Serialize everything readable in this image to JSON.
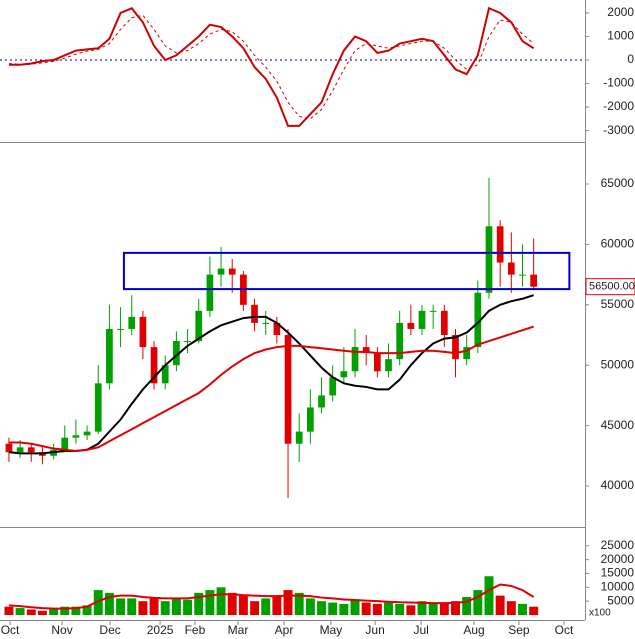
{
  "chart_data": [
    {
      "type": "line",
      "x": [
        0,
        5,
        10,
        15,
        20,
        25,
        30,
        35,
        40,
        45,
        50,
        55,
        60,
        65,
        70,
        75,
        80,
        85,
        90,
        95,
        100,
        105,
        110,
        115,
        120,
        125,
        130,
        135,
        140,
        145,
        150,
        155,
        160,
        165,
        170,
        175,
        180,
        185,
        190,
        195,
        200,
        205,
        210,
        215,
        220,
        225,
        230,
        235
      ],
      "xlim": [
        -4,
        258
      ],
      "ylim": [
        -3400,
        2550
      ],
      "yticks": [
        -3000,
        -2000,
        -1000,
        0,
        1000,
        2000
      ],
      "zero_line": {
        "value": 0,
        "color": "#00008b"
      },
      "series": [
        {
          "color": "#d00000",
          "dash": false,
          "values": [
            -200,
            -200,
            -150,
            -50,
            0,
            200,
            400,
            450,
            500,
            900,
            2000,
            2200,
            1600,
            600,
            0,
            200,
            600,
            1000,
            1500,
            1400,
            1000,
            500,
            -300,
            -800,
            -1600,
            -2800,
            -2800,
            -2300,
            -1800,
            -600,
            400,
            1000,
            800,
            300,
            400,
            700,
            800,
            900,
            800,
            200,
            -400,
            -600,
            200,
            2200,
            2000,
            1600,
            800,
            500
          ]
        },
        {
          "color": "#d00000",
          "dash": true,
          "values": [
            -150,
            -180,
            -180,
            -120,
            -60,
            80,
            250,
            380,
            450,
            700,
            1300,
            1800,
            1900,
            1300,
            600,
            300,
            400,
            700,
            1100,
            1300,
            1200,
            800,
            200,
            -300,
            -900,
            -1800,
            -2400,
            -2500,
            -2100,
            -1300,
            -400,
            400,
            700,
            600,
            500,
            600,
            700,
            800,
            800,
            500,
            0,
            -400,
            -200,
            1000,
            1700,
            1600,
            1100,
            700
          ]
        }
      ]
    },
    {
      "type": "candlestick",
      "x": [
        0,
        5,
        10,
        15,
        20,
        25,
        30,
        35,
        40,
        45,
        50,
        55,
        60,
        65,
        70,
        75,
        80,
        85,
        90,
        95,
        100,
        105,
        110,
        115,
        120,
        125,
        130,
        135,
        140,
        145,
        150,
        155,
        160,
        165,
        170,
        175,
        180,
        185,
        190,
        195,
        200,
        205,
        210,
        215,
        220,
        225,
        230,
        235
      ],
      "xlim": [
        -4,
        258
      ],
      "ylim": [
        36770,
        68230
      ],
      "yticks": [
        40000,
        45000,
        50000,
        55000,
        60000,
        65000
      ],
      "up_color": "#00a000",
      "down_color": "#e00000",
      "open": [
        43500,
        42800,
        43200,
        42800,
        42500,
        43000,
        44000,
        44200,
        44500,
        48500,
        53000,
        53000,
        54000,
        51500,
        48500,
        50000,
        52000,
        52000,
        54500,
        57500,
        58000,
        57500,
        55000,
        53500,
        53500,
        52500,
        43500,
        44500,
        46500,
        47500,
        49000,
        49500,
        51500,
        51000,
        49500,
        50500,
        53500,
        53000,
        54500,
        54500,
        52500,
        50500,
        51500,
        56000,
        61500,
        58500,
        57500,
        57500
      ],
      "high": [
        44000,
        43800,
        43500,
        43300,
        43500,
        45000,
        45500,
        45000,
        50000,
        55000,
        54800,
        55800,
        54500,
        52000,
        50800,
        52800,
        53000,
        55500,
        59000,
        59800,
        58800,
        57800,
        55500,
        54500,
        54000,
        53000,
        46000,
        48000,
        49000,
        50000,
        51500,
        53000,
        52500,
        51500,
        51800,
        54500,
        55000,
        55000,
        55000,
        55000,
        53000,
        52500,
        57000,
        65500,
        62000,
        61000,
        60000,
        60500
      ],
      "low": [
        42000,
        42300,
        42000,
        41800,
        42200,
        42800,
        43500,
        43800,
        44300,
        48000,
        51500,
        52500,
        50500,
        48000,
        48000,
        49500,
        51000,
        51800,
        54000,
        56500,
        56000,
        54500,
        52800,
        52500,
        51800,
        39000,
        42000,
        43500,
        46000,
        47000,
        48500,
        49000,
        50000,
        49000,
        49000,
        50000,
        52500,
        52500,
        53000,
        51500,
        49000,
        50000,
        51000,
        55500,
        56500,
        56000,
        56500,
        56200
      ],
      "close": [
        42800,
        43200,
        42800,
        42500,
        43000,
        44000,
        44200,
        44500,
        48500,
        53000,
        53000,
        54000,
        51500,
        48500,
        50000,
        52000,
        52000,
        54500,
        57500,
        58000,
        57500,
        55000,
        53500,
        53500,
        52500,
        43500,
        44500,
        46500,
        47500,
        49000,
        49500,
        51500,
        51000,
        49500,
        50500,
        53500,
        53000,
        54500,
        54500,
        52500,
        50500,
        51500,
        56000,
        61500,
        58500,
        57500,
        57500,
        56500
      ],
      "series": [
        {
          "color": "#000000",
          "values": [
            42800,
            42700,
            42700,
            42700,
            42800,
            42900,
            42900,
            43000,
            43500,
            44500,
            45500,
            46800,
            48000,
            49000,
            50000,
            50800,
            51600,
            52200,
            52800,
            53300,
            53600,
            53900,
            54000,
            54000,
            53500,
            52700,
            51800,
            50800,
            49800,
            49000,
            48500,
            48300,
            48200,
            48000,
            48000,
            48800,
            50000,
            51000,
            51800,
            52200,
            52300,
            52700,
            53500,
            54500,
            55000,
            55300,
            55500,
            55800
          ]
        },
        {
          "color": "#e00000",
          "values": [
            43600,
            43600,
            43500,
            43300,
            43100,
            43000,
            42900,
            43000,
            43200,
            43700,
            44200,
            44700,
            45200,
            45700,
            46200,
            46700,
            47200,
            47700,
            48400,
            49200,
            49900,
            50500,
            51000,
            51300,
            51500,
            51600,
            51600,
            51500,
            51400,
            51300,
            51200,
            51100,
            51100,
            51000,
            51000,
            51000,
            51100,
            51200,
            51200,
            51100,
            51000,
            51200,
            51700,
            52000,
            52300,
            52600,
            52900,
            53200
          ]
        }
      ],
      "box": {
        "x": [
          51.5,
          251
        ],
        "y": [
          56300,
          59300
        ],
        "color": "#0000cc"
      },
      "price_tag": {
        "value": 56500,
        "label": "56500.00",
        "color": "#e00000"
      }
    },
    {
      "type": "bar",
      "x": [
        0,
        5,
        10,
        15,
        20,
        25,
        30,
        35,
        40,
        45,
        50,
        55,
        60,
        65,
        70,
        75,
        80,
        85,
        90,
        95,
        100,
        105,
        110,
        115,
        120,
        125,
        130,
        135,
        140,
        145,
        150,
        155,
        160,
        165,
        170,
        175,
        180,
        185,
        190,
        195,
        200,
        205,
        210,
        215,
        220,
        225,
        230,
        235
      ],
      "xlim": [
        -4,
        258
      ],
      "ylim": [
        0,
        30350
      ],
      "yticks": [
        5000,
        10000,
        15000,
        20000,
        25000
      ],
      "unit_label": "x100",
      "color": "#00a000",
      "values": [
        3000,
        2500,
        2000,
        1500,
        2000,
        3000,
        3000,
        3500,
        9000,
        8000,
        6000,
        6000,
        5000,
        6000,
        5000,
        6000,
        5500,
        8000,
        9000,
        10000,
        8000,
        7000,
        5000,
        6000,
        7000,
        9000,
        8000,
        6000,
        5000,
        4500,
        4000,
        5500,
        4500,
        4000,
        4500,
        4000,
        3500,
        5000,
        4000,
        4000,
        5000,
        6500,
        9000,
        14000,
        7000,
        5000,
        4000,
        3000
      ],
      "series": [
        {
          "color": "#e00000",
          "values": [
            3500,
            3200,
            2800,
            2500,
            2300,
            2300,
            2500,
            3000,
            5000,
            6500,
            7000,
            7000,
            6500,
            6200,
            6000,
            6000,
            6000,
            6500,
            7000,
            7500,
            7500,
            7200,
            7000,
            6800,
            6800,
            7000,
            7000,
            6800,
            6300,
            6000,
            5600,
            5400,
            5200,
            5000,
            4800,
            4600,
            4500,
            4400,
            4300,
            4300,
            4400,
            4800,
            6500,
            9000,
            11000,
            10500,
            9000,
            6500
          ]
        }
      ],
      "xticks": [
        {
          "value": 0.5,
          "label": "Oct"
        },
        {
          "value": 23.8,
          "label": "Nov"
        },
        {
          "value": 45.3,
          "label": "Dec"
        },
        {
          "value": 67.7,
          "label": "2025"
        },
        {
          "value": 83.3,
          "label": "Feb"
        },
        {
          "value": 102.6,
          "label": "Mar"
        },
        {
          "value": 123.2,
          "label": "Apr"
        },
        {
          "value": 144.2,
          "label": "May"
        },
        {
          "value": 164,
          "label": "Jun"
        },
        {
          "value": 184.6,
          "label": "Jul"
        },
        {
          "value": 208.3,
          "label": "Aug"
        },
        {
          "value": 228.4,
          "label": "Sep"
        },
        {
          "value": 248.6,
          "label": "Oct"
        }
      ]
    }
  ]
}
